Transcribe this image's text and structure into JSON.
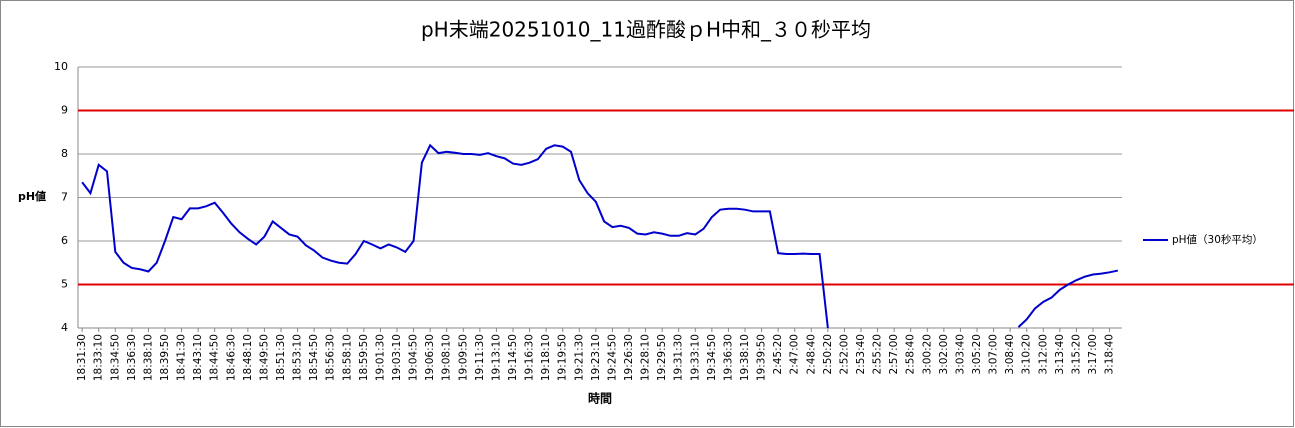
{
  "chart_data": {
    "type": "line",
    "title": "pH末端20251010_11過酢酸ｐH中和_３０秒平均",
    "y_label": "pH値",
    "x_label": "時間",
    "categories": [
      "18:31:30",
      null,
      "18:33:10",
      null,
      "18:34:50",
      null,
      "18:36:30",
      null,
      "18:38:10",
      null,
      "18:39:50",
      null,
      "18:41:30",
      null,
      "18:43:10",
      null,
      "18:44:50",
      null,
      "18:46:30",
      null,
      "18:48:10",
      null,
      "18:49:50",
      null,
      "18:51:30",
      null,
      "18:53:10",
      null,
      "18:54:50",
      null,
      "18:56:30",
      null,
      "18:58:10",
      null,
      "18:59:50",
      null,
      "19:01:30",
      null,
      "19:03:10",
      null,
      "19:04:50",
      null,
      "19:06:30",
      null,
      "19:08:10",
      null,
      "19:09:50",
      null,
      "19:11:30",
      null,
      "19:13:10",
      null,
      "19:14:50",
      null,
      "19:16:30",
      null,
      "19:18:10",
      null,
      "19:19:50",
      null,
      "19:21:30",
      null,
      "19:23:10",
      null,
      "19:24:50",
      null,
      "19:26:30",
      null,
      "19:28:10",
      null,
      "19:29:50",
      null,
      "19:31:30",
      null,
      "19:33:10",
      null,
      "19:34:50",
      null,
      "19:36:30",
      null,
      "19:38:10",
      null,
      "19:39:50",
      null,
      "2:45:20",
      null,
      "2:47:00",
      null,
      "2:48:40",
      null,
      "2:50:20",
      null,
      "2:52:00",
      null,
      "2:53:40",
      null,
      "2:55:20",
      null,
      "2:57:00",
      null,
      "2:58:40",
      null,
      "3:00:20",
      null,
      "3:02:00",
      null,
      "3:03:40",
      null,
      "3:05:20",
      null,
      "3:07:00",
      null,
      "3:08:40",
      null,
      "3:10:20",
      null,
      "3:12:00",
      null,
      "3:13:40",
      null,
      "3:15:20",
      null,
      "3:17:00",
      null,
      "3:18:40",
      null
    ],
    "series": [
      {
        "name": "pH値（30秒平均）",
        "color": "#0000cc",
        "values": [
          7.35,
          7.1,
          7.75,
          7.6,
          5.75,
          5.5,
          5.38,
          5.35,
          5.3,
          5.5,
          6.0,
          6.55,
          6.5,
          6.75,
          6.75,
          6.8,
          6.88,
          6.65,
          6.4,
          6.2,
          6.05,
          5.92,
          6.1,
          6.45,
          6.3,
          6.15,
          6.1,
          5.9,
          5.78,
          5.62,
          5.55,
          5.5,
          5.48,
          5.7,
          6.0,
          5.92,
          5.83,
          5.92,
          5.85,
          5.75,
          6.0,
          7.8,
          8.2,
          8.02,
          8.05,
          8.03,
          8.0,
          8.0,
          7.98,
          8.02,
          7.95,
          7.9,
          7.78,
          7.75,
          7.8,
          7.88,
          8.12,
          8.2,
          8.17,
          8.05,
          7.4,
          7.1,
          6.9,
          6.45,
          6.32,
          6.35,
          6.3,
          6.17,
          6.15,
          6.2,
          6.17,
          6.12,
          6.12,
          6.18,
          6.15,
          6.28,
          6.55,
          6.72,
          6.74,
          6.74,
          6.72,
          6.68,
          6.68,
          6.68,
          5.72,
          5.7,
          5.7,
          5.71,
          5.7,
          5.7,
          4.0,
          null,
          null,
          null,
          null,
          null,
          null,
          null,
          null,
          null,
          null,
          null,
          null,
          null,
          null,
          null,
          null,
          null,
          null,
          null,
          null,
          null,
          null,
          4.02,
          4.2,
          4.45,
          4.6,
          4.7,
          4.88,
          5.0,
          5.1,
          5.18,
          5.23,
          5.25,
          5.28,
          5.32
        ]
      }
    ],
    "reference_lines": [
      {
        "value": 9,
        "color": "#e00000"
      },
      {
        "value": 5,
        "color": "#e00000"
      }
    ],
    "ylim": [
      4,
      10
    ],
    "yticks": [
      4,
      5,
      6,
      7,
      8,
      9,
      10
    ],
    "grid": true,
    "legend": "right"
  }
}
